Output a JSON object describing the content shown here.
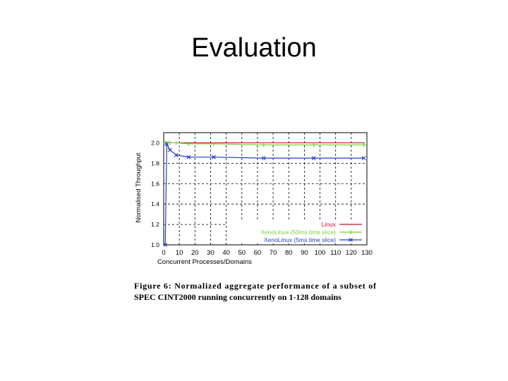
{
  "title": "Evaluation",
  "chart_data": {
    "type": "line",
    "x_label": "Concurrent Processes/Domains",
    "y_label": "Normalised Throughput",
    "x": [
      1,
      2,
      4,
      8,
      16,
      32,
      64,
      96,
      128
    ],
    "series": [
      {
        "name": "Linux",
        "color": "#c8102e",
        "marker": "none",
        "values": [
          2.0,
          2.0,
          2.0,
          2.0,
          2.0,
          2.0,
          2.0,
          2.0,
          2.0
        ]
      },
      {
        "name": "XenoLinux (50ms time slice)",
        "color": "#7ccf3a",
        "marker": "plus",
        "values": [
          2.0,
          2.0,
          2.0,
          2.0,
          1.99,
          1.99,
          1.98,
          1.98,
          1.98
        ]
      },
      {
        "name": "XenoLinux (5ms time slice)",
        "color": "#2040c0",
        "marker": "cross",
        "values": [
          1.0,
          1.99,
          1.93,
          1.88,
          1.86,
          1.86,
          1.85,
          1.85,
          1.85
        ]
      }
    ],
    "xlim": [
      0,
      130
    ],
    "xticks": [
      0,
      10,
      20,
      30,
      40,
      50,
      60,
      70,
      80,
      90,
      100,
      110,
      120,
      130
    ],
    "ylim": [
      1,
      2.1
    ],
    "yticks": [
      {
        "value": 1,
        "label": "1.0"
      },
      1.2,
      1.4,
      1.6,
      1.8,
      {
        "value": 2,
        "label": "2.0"
      }
    ],
    "grid": true,
    "legend": "lower-right"
  },
  "caption": [
    "Figure 6:  Normalized aggregate performance of a subset of",
    "SPEC CINT2000 running concurrently on 1-128 domains"
  ]
}
